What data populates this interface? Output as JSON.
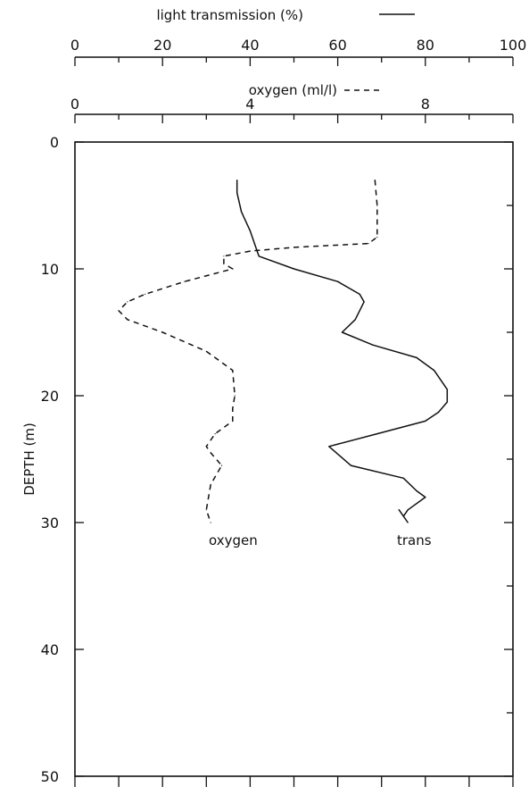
{
  "chart_data": {
    "type": "line",
    "title": "",
    "top_axis_1": {
      "label": "light transmission (%)",
      "min": 0,
      "max": 100,
      "ticks": [
        0,
        20,
        40,
        60,
        80,
        100
      ],
      "tick_labels": [
        "0",
        "20",
        "40",
        "60",
        "80",
        "100"
      ],
      "minor_step": 10
    },
    "top_axis_2": {
      "label": "oxygen (ml/l)",
      "min": 0,
      "max": 10,
      "ticks": [
        0,
        4,
        8
      ],
      "tick_labels": [
        "0",
        "4",
        "8"
      ],
      "minor_step": 1
    },
    "y_axis": {
      "label": "DEPTH (m)",
      "min": 0,
      "max": 50,
      "inverted": true,
      "ticks": [
        0,
        10,
        20,
        30,
        40,
        50
      ],
      "tick_labels": [
        "0",
        "10",
        "20",
        "30",
        "40",
        "50"
      ],
      "minor_step": 5
    },
    "grid": false,
    "series": [
      {
        "name": "trans",
        "axis": "top_axis_1",
        "line_style": "solid",
        "points": [
          [
            37,
            3
          ],
          [
            37,
            4
          ],
          [
            38,
            5.5
          ],
          [
            40,
            7
          ],
          [
            41,
            8
          ],
          [
            42,
            9
          ],
          [
            50,
            10
          ],
          [
            60,
            11
          ],
          [
            65,
            12
          ],
          [
            66,
            12.6
          ],
          [
            64,
            14
          ],
          [
            61,
            15
          ],
          [
            68,
            16
          ],
          [
            78,
            17
          ],
          [
            82,
            18
          ],
          [
            85,
            19.5
          ],
          [
            85,
            20.5
          ],
          [
            83,
            21.3
          ],
          [
            80,
            22
          ],
          [
            69,
            23
          ],
          [
            58,
            24
          ],
          [
            63,
            25.5
          ],
          [
            75,
            26.5
          ],
          [
            78,
            27.5
          ],
          [
            80,
            28
          ],
          [
            76,
            29
          ],
          [
            75,
            29.5
          ],
          [
            74,
            29
          ],
          [
            76,
            30
          ]
        ]
      },
      {
        "name": "oxygen",
        "axis": "top_axis_2",
        "line_style": "dashed",
        "points": [
          [
            6.85,
            3
          ],
          [
            6.9,
            5
          ],
          [
            6.9,
            7.5
          ],
          [
            6.7,
            8
          ],
          [
            5.0,
            8.3
          ],
          [
            4.0,
            8.6
          ],
          [
            3.4,
            9
          ],
          [
            3.4,
            9.6
          ],
          [
            3.6,
            10
          ],
          [
            2.5,
            11
          ],
          [
            1.6,
            12
          ],
          [
            1.2,
            12.6
          ],
          [
            1.0,
            13.3
          ],
          [
            1.2,
            14
          ],
          [
            2.0,
            15
          ],
          [
            3.0,
            16.5
          ],
          [
            3.6,
            18
          ],
          [
            3.65,
            20
          ],
          [
            3.6,
            21
          ],
          [
            3.6,
            22
          ],
          [
            3.2,
            23
          ],
          [
            3.0,
            24
          ],
          [
            3.1,
            24.5
          ],
          [
            3.35,
            25.5
          ],
          [
            3.1,
            27
          ],
          [
            3.0,
            29
          ],
          [
            3.1,
            30
          ]
        ]
      }
    ],
    "annotations": [
      {
        "text": "oxygen",
        "series": "oxygen"
      },
      {
        "text": "trans",
        "series": "trans"
      }
    ],
    "legend": [
      {
        "text": "light transmission (%)",
        "line_style": "solid",
        "placement": "top"
      },
      {
        "text": "oxygen (ml/l)",
        "line_style": "dashed",
        "placement": "top"
      }
    ]
  }
}
